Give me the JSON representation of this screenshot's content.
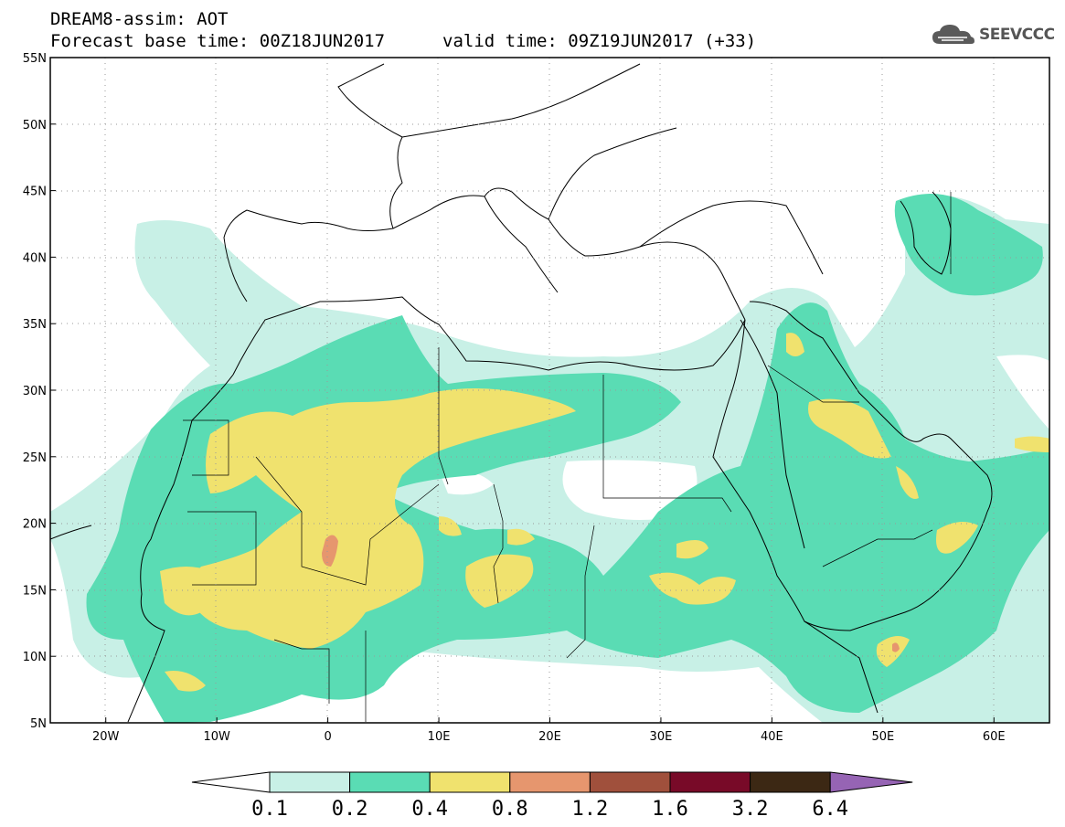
{
  "header": {
    "title": "DREAM8-assim: AOT",
    "base_time": "Forecast base time: 00Z18JUN2017",
    "valid_time": "valid time: 09Z19JUN2017 (+33)"
  },
  "logo": {
    "text": "SEEVCCC",
    "icon": "cloud-icon"
  },
  "map": {
    "lon_range": [
      -25,
      65
    ],
    "lat_range": [
      5,
      55
    ],
    "lon_ticks": [
      {
        "lon": -20,
        "label": "20W"
      },
      {
        "lon": -10,
        "label": "10W"
      },
      {
        "lon": 0,
        "label": "0"
      },
      {
        "lon": 10,
        "label": "10E"
      },
      {
        "lon": 20,
        "label": "20E"
      },
      {
        "lon": 30,
        "label": "30E"
      },
      {
        "lon": 40,
        "label": "40E"
      },
      {
        "lon": 50,
        "label": "50E"
      },
      {
        "lon": 60,
        "label": "60E"
      }
    ],
    "lat_ticks": [
      {
        "lat": 55,
        "label": "55N"
      },
      {
        "lat": 50,
        "label": "50N"
      },
      {
        "lat": 45,
        "label": "45N"
      },
      {
        "lat": 40,
        "label": "40N"
      },
      {
        "lat": 35,
        "label": "35N"
      },
      {
        "lat": 30,
        "label": "30N"
      },
      {
        "lat": 25,
        "label": "25N"
      },
      {
        "lat": 20,
        "label": "20N"
      },
      {
        "lat": 15,
        "label": "15N"
      },
      {
        "lat": 10,
        "label": "10N"
      },
      {
        "lat": 5,
        "label": "5N"
      }
    ],
    "gridlines": "dotted"
  },
  "colorbar": {
    "levels": [
      "0.1",
      "0.2",
      "0.4",
      "0.8",
      "1.2",
      "1.6",
      "3.2",
      "6.4"
    ],
    "colors": [
      "#ffffff",
      "#c8f0e6",
      "#5adcb4",
      "#f0e26e",
      "#e6966e",
      "#a0503c",
      "#780a28",
      "#3c2814",
      "#9664b4"
    ]
  }
}
